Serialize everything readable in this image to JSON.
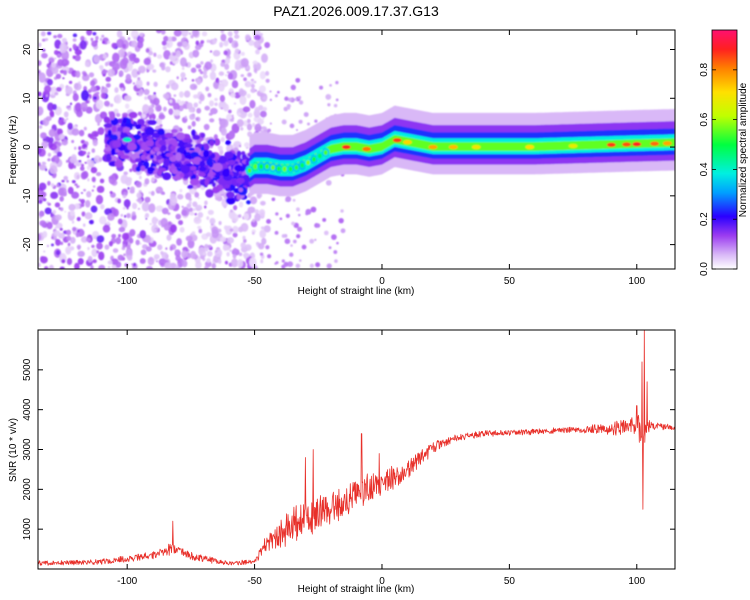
{
  "chart_data": [
    {
      "type": "heatmap",
      "title": "PAZ1.2026.009.17.37.G13",
      "xlabel": "Height of straight line (km)",
      "ylabel": "Frequency (Hz)",
      "xlim": [
        -135,
        115
      ],
      "ylim": [
        -25,
        24
      ],
      "xticks": [
        -100,
        -50,
        0,
        50,
        100
      ],
      "yticks": [
        -20,
        -10,
        0,
        10,
        20
      ],
      "ridge": {
        "x": [
          -100,
          -90,
          -80,
          -70,
          -60,
          -55,
          -50,
          -45,
          -40,
          -35,
          -30,
          -25,
          -20,
          -15,
          -10,
          -5,
          0,
          5,
          10,
          15,
          20,
          30,
          40,
          60,
          80,
          100,
          115
        ],
        "freq": [
          1.5,
          -1,
          -2,
          -3,
          -5,
          -6,
          -4,
          -4,
          -4.5,
          -4.5,
          -3.5,
          -2,
          -0.5,
          0,
          0,
          -0.5,
          0,
          1.5,
          1,
          0.5,
          0,
          0,
          0,
          0,
          0.3,
          0.6,
          0.8
        ]
      },
      "colorbar": {
        "label": "Normalized spectral amplitude",
        "ticks": [
          "0.0",
          "0.2",
          "0.4",
          "0.6",
          "0.8"
        ],
        "range": [
          0,
          0.96
        ]
      }
    },
    {
      "type": "line",
      "xlabel": "Height of straight line (km)",
      "ylabel": "SNR (10 * v/v)",
      "xlim": [
        -135,
        115
      ],
      "ylim": [
        0,
        6000
      ],
      "xticks": [
        -100,
        -50,
        0,
        50,
        100
      ],
      "yticks": [
        1000,
        2000,
        3000,
        4000,
        5000
      ],
      "series": [
        {
          "name": "SNR",
          "color": "#e8302a",
          "x": [
            -135,
            -110,
            -90,
            -82,
            -75,
            -60,
            -50,
            -46,
            -40,
            -35,
            -30,
            -25,
            -20,
            -15,
            -10,
            -5,
            0,
            5,
            10,
            15,
            20,
            25,
            30,
            40,
            50,
            60,
            70,
            80,
            90,
            95,
            100,
            102,
            103,
            104,
            106,
            115
          ],
          "mean": [
            150,
            180,
            350,
            500,
            320,
            140,
            180,
            600,
            900,
            1150,
            1300,
            1400,
            1550,
            1700,
            1850,
            2000,
            2150,
            2300,
            2500,
            2800,
            3050,
            3200,
            3300,
            3400,
            3420,
            3450,
            3480,
            3500,
            3520,
            3580,
            3650,
            3200,
            3550,
            3600,
            3580,
            3550
          ],
          "noise": [
            70,
            80,
            120,
            180,
            120,
            60,
            70,
            250,
            400,
            500,
            550,
            550,
            500,
            500,
            450,
            400,
            350,
            350,
            300,
            220,
            180,
            120,
            100,
            90,
            80,
            80,
            90,
            100,
            160,
            250,
            350,
            800,
            600,
            250,
            120,
            100
          ],
          "spikes": [
            [
              -82,
              1200
            ],
            [
              -30,
              2800
            ],
            [
              -27,
              3000
            ],
            [
              -8,
              3400
            ],
            [
              -1,
              2900
            ],
            [
              100,
              4100
            ],
            [
              102,
              5200
            ],
            [
              103,
              6000
            ],
            [
              102.5,
              1500
            ],
            [
              104,
              4700
            ]
          ]
        }
      ]
    }
  ]
}
